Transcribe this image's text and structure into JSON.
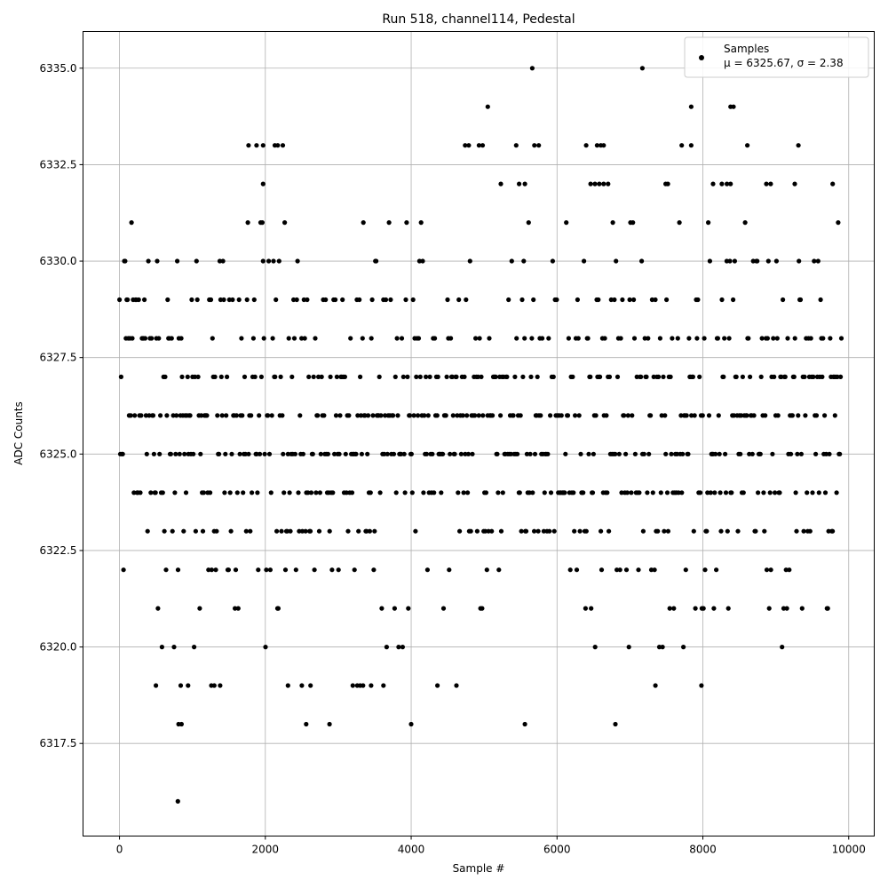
{
  "chart_data": {
    "type": "scatter",
    "title": "Run 518, channel114, Pedestal",
    "xlabel": "Sample #",
    "ylabel": "ADC Counts",
    "xlim": [
      -500,
      10350
    ],
    "ylim": [
      6315.1,
      6335.95
    ],
    "x_ticks": [
      0,
      2000,
      4000,
      6000,
      8000,
      10000
    ],
    "x_tick_labels": [
      "0",
      "2000",
      "4000",
      "6000",
      "8000",
      "10000"
    ],
    "y_ticks": [
      6317.5,
      6320.0,
      6322.5,
      6325.0,
      6327.5,
      6330.0,
      6332.5,
      6335.0
    ],
    "y_tick_labels": [
      "6317.5",
      "6320.0",
      "6322.5",
      "6325.0",
      "6327.5",
      "6330.0",
      "6332.5",
      "6335.0"
    ],
    "grid": true,
    "legend_position": "top-right",
    "marker_color": "#000000",
    "series": [
      {
        "name": "Samples",
        "label_line2": "μ = 6325.67, σ = 2.38",
        "n_samples": 9900,
        "mean": 6325.67,
        "sigma": 2.38,
        "x": [
          0,
          9900
        ],
        "outliers": [
          {
            "x": 5660,
            "y": 6335
          },
          {
            "x": 7170,
            "y": 6335
          },
          {
            "x": 5050,
            "y": 6334
          },
          {
            "x": 7840,
            "y": 6334
          },
          {
            "x": 8380,
            "y": 6334
          },
          {
            "x": 8420,
            "y": 6334
          },
          {
            "x": 1770,
            "y": 6333
          },
          {
            "x": 1880,
            "y": 6333
          },
          {
            "x": 1970,
            "y": 6333
          },
          {
            "x": 2130,
            "y": 6333
          },
          {
            "x": 2170,
            "y": 6333
          },
          {
            "x": 2240,
            "y": 6333
          },
          {
            "x": 4740,
            "y": 6333
          },
          {
            "x": 4790,
            "y": 6333
          },
          {
            "x": 4930,
            "y": 6333
          },
          {
            "x": 4980,
            "y": 6333
          },
          {
            "x": 5440,
            "y": 6333
          },
          {
            "x": 5690,
            "y": 6333
          },
          {
            "x": 5750,
            "y": 6333
          },
          {
            "x": 6400,
            "y": 6333
          },
          {
            "x": 6550,
            "y": 6333
          },
          {
            "x": 6600,
            "y": 6333
          },
          {
            "x": 6640,
            "y": 6333
          },
          {
            "x": 7710,
            "y": 6333
          },
          {
            "x": 7840,
            "y": 6333
          },
          {
            "x": 8610,
            "y": 6333
          },
          {
            "x": 9310,
            "y": 6333
          },
          {
            "x": 1970,
            "y": 6332
          },
          {
            "x": 5230,
            "y": 6332
          },
          {
            "x": 5480,
            "y": 6332
          },
          {
            "x": 5560,
            "y": 6332
          },
          {
            "x": 6460,
            "y": 6332
          },
          {
            "x": 6520,
            "y": 6332
          },
          {
            "x": 6580,
            "y": 6332
          },
          {
            "x": 6640,
            "y": 6332
          },
          {
            "x": 6700,
            "y": 6332
          },
          {
            "x": 7490,
            "y": 6332
          },
          {
            "x": 7520,
            "y": 6332
          },
          {
            "x": 8140,
            "y": 6332
          },
          {
            "x": 8260,
            "y": 6332
          },
          {
            "x": 8330,
            "y": 6332
          },
          {
            "x": 8380,
            "y": 6332
          },
          {
            "x": 8870,
            "y": 6332
          },
          {
            "x": 8930,
            "y": 6332
          },
          {
            "x": 9260,
            "y": 6332
          },
          {
            "x": 9780,
            "y": 6332
          },
          {
            "x": 500,
            "y": 6319
          },
          {
            "x": 840,
            "y": 6319
          },
          {
            "x": 940,
            "y": 6319
          },
          {
            "x": 1260,
            "y": 6319
          },
          {
            "x": 1300,
            "y": 6319
          },
          {
            "x": 1380,
            "y": 6319
          },
          {
            "x": 2310,
            "y": 6319
          },
          {
            "x": 2500,
            "y": 6319
          },
          {
            "x": 2620,
            "y": 6319
          },
          {
            "x": 3200,
            "y": 6319
          },
          {
            "x": 3260,
            "y": 6319
          },
          {
            "x": 3300,
            "y": 6319
          },
          {
            "x": 3340,
            "y": 6319
          },
          {
            "x": 3450,
            "y": 6319
          },
          {
            "x": 3620,
            "y": 6319
          },
          {
            "x": 4360,
            "y": 6319
          },
          {
            "x": 4620,
            "y": 6319
          },
          {
            "x": 7350,
            "y": 6319
          },
          {
            "x": 7980,
            "y": 6319
          },
          {
            "x": 810,
            "y": 6318
          },
          {
            "x": 850,
            "y": 6318
          },
          {
            "x": 2560,
            "y": 6318
          },
          {
            "x": 2880,
            "y": 6318
          },
          {
            "x": 4000,
            "y": 6318
          },
          {
            "x": 5560,
            "y": 6318
          },
          {
            "x": 6800,
            "y": 6318
          },
          {
            "x": 800,
            "y": 6316
          }
        ]
      }
    ]
  }
}
